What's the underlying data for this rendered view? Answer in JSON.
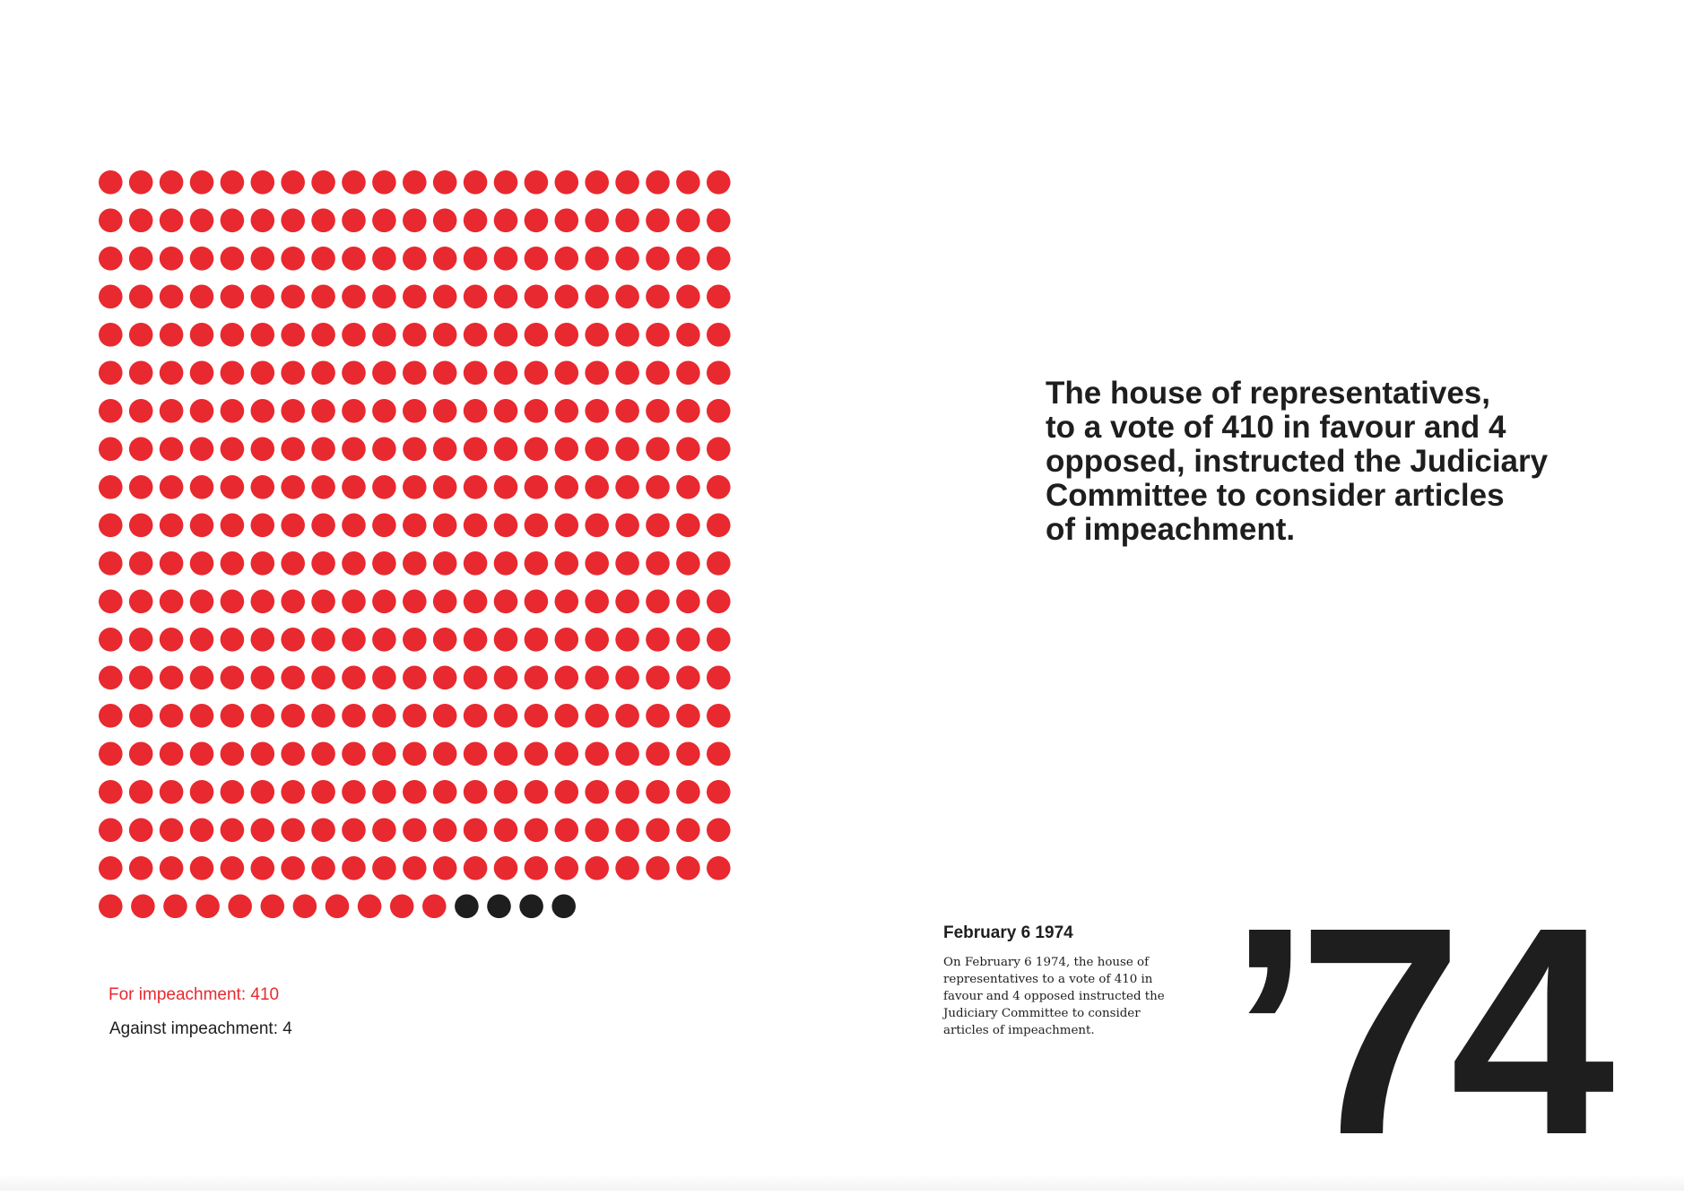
{
  "chart_data": {
    "type": "waffle",
    "categories": [
      "For impeachment",
      "Against impeachment"
    ],
    "values": [
      410,
      4
    ],
    "columns": 21,
    "series": [
      {
        "name": "For impeachment: 410",
        "value": 410,
        "color": "#e8292f"
      },
      {
        "name": "Against impeachment: 4",
        "value": 4,
        "color": "#1e1e1e"
      }
    ]
  },
  "legend": {
    "for_label": "For impeachment: 410",
    "against_label": "Against impeachment: 4"
  },
  "headline": {
    "lines": [
      "The house of representatives,",
      "to a vote of 410 in favour and 4",
      "opposed, instructed the Judiciary",
      "Committee to consider articles",
      "of impeachment."
    ]
  },
  "sidebar": {
    "date": "February 6 1974",
    "body_lines": [
      "On February 6 1974, the house of",
      "representatives to a vote of 410 in",
      "favour and 4 opposed instructed the",
      "Judiciary Committee to consider",
      "articles of impeachment."
    ]
  },
  "year_mark": "’74",
  "colors": {
    "for": "#e8292f",
    "against": "#1e1e1e",
    "text": "#1e1e1e",
    "background": "#ffffff"
  }
}
